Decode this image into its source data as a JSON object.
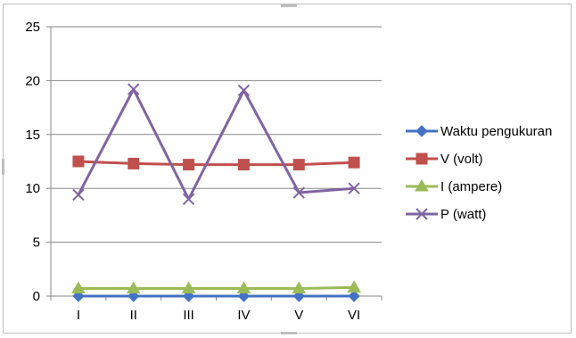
{
  "chart_data": {
    "type": "line",
    "title": "",
    "xlabel": "",
    "ylabel": "",
    "categories": [
      "I",
      "II",
      "III",
      "IV",
      "V",
      "VI"
    ],
    "ylim": [
      0,
      25
    ],
    "yticks": [
      0,
      5,
      10,
      15,
      20,
      25
    ],
    "grid": true,
    "legend_position": "right",
    "series": [
      {
        "name": "Waktu pengukuran",
        "values": [
          0,
          0,
          0,
          0,
          0,
          0
        ],
        "color": "#4472c4",
        "marker": "diamond"
      },
      {
        "name": "V (volt)",
        "values": [
          12.5,
          12.3,
          12.2,
          12.2,
          12.2,
          12.4
        ],
        "color": "#c0504d",
        "marker": "square"
      },
      {
        "name": "I (ampere)",
        "values": [
          0.7,
          0.7,
          0.7,
          0.7,
          0.7,
          0.8
        ],
        "color": "#9bbb59",
        "marker": "triangle"
      },
      {
        "name": "P (watt)",
        "values": [
          9.4,
          19.2,
          9.0,
          19.1,
          9.6,
          10.0
        ],
        "color": "#8064a2",
        "marker": "x"
      }
    ]
  }
}
